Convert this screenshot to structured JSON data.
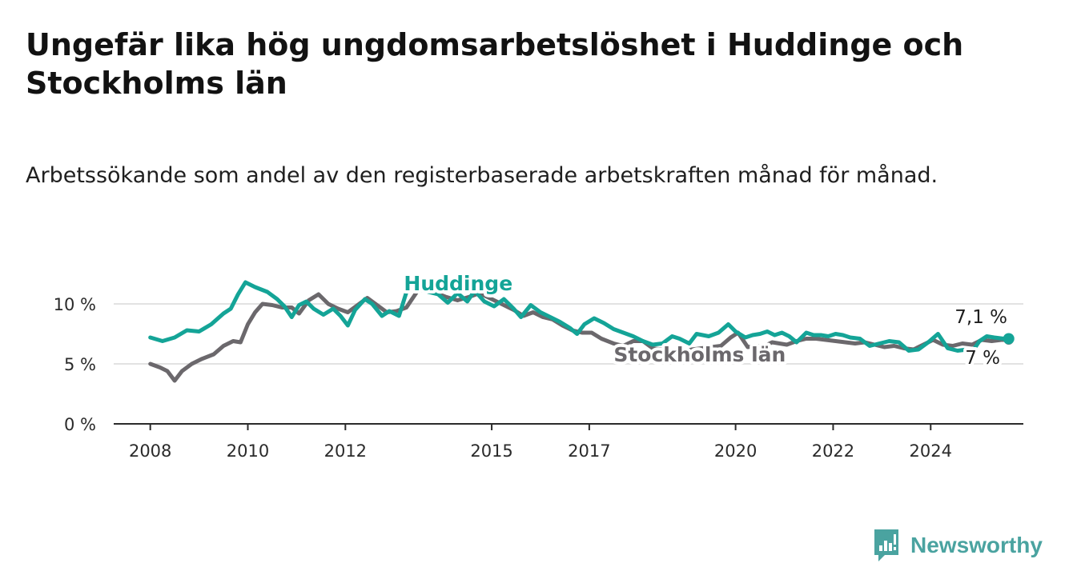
{
  "title": "Ungefär lika hög ungdomsarbetslöshet i Huddinge och Stockholms län",
  "subtitle": "Arbetssökande som andel av den registerbaserade arbetskraften månad för månad.",
  "brand": {
    "name": "Newsworthy",
    "icon": "newsworthy-logo-icon"
  },
  "colors": {
    "huddinge": "#14a497",
    "stockholm": "#6b686c",
    "axis": "#2b2b2b",
    "grid": "#d9d9d9",
    "text": "#2a2a2a"
  },
  "chart_data": {
    "type": "line",
    "title": "Ungefär lika hög ungdomsarbetslöshet i Huddinge och Stockholms län",
    "subtitle": "Arbetssökande som andel av den registerbaserade arbetskraften månad för månad.",
    "xlabel": "",
    "ylabel": "",
    "x_range": [
      2007.25,
      2025.9
    ],
    "ylim": [
      0,
      12
    ],
    "y_ticks": [
      0,
      5,
      10
    ],
    "y_tick_labels": [
      "0 %",
      "5 %",
      "10 %"
    ],
    "x_ticks": [
      2008,
      2010,
      2012,
      2015,
      2017,
      2020,
      2022,
      2024
    ],
    "x_tick_labels": [
      "2008",
      "2010",
      "2012",
      "2015",
      "2017",
      "2020",
      "2022",
      "2024"
    ],
    "grid": "horizontal",
    "legend": "direct labels on lines",
    "series": [
      {
        "name": "Huddinge",
        "end_label": "7,1 %",
        "points": [
          [
            2008.0,
            7.2
          ],
          [
            2008.25,
            6.9
          ],
          [
            2008.5,
            7.2
          ],
          [
            2008.75,
            7.8
          ],
          [
            2009.0,
            7.7
          ],
          [
            2009.25,
            8.3
          ],
          [
            2009.5,
            9.2
          ],
          [
            2009.65,
            9.6
          ],
          [
            2009.8,
            10.8
          ],
          [
            2009.95,
            11.8
          ],
          [
            2010.15,
            11.4
          ],
          [
            2010.4,
            11.0
          ],
          [
            2010.6,
            10.4
          ],
          [
            2010.75,
            9.8
          ],
          [
            2010.9,
            8.9
          ],
          [
            2011.05,
            9.9
          ],
          [
            2011.2,
            10.2
          ],
          [
            2011.35,
            9.6
          ],
          [
            2011.55,
            9.1
          ],
          [
            2011.75,
            9.6
          ],
          [
            2011.9,
            9.0
          ],
          [
            2012.05,
            8.2
          ],
          [
            2012.2,
            9.5
          ],
          [
            2012.4,
            10.4
          ],
          [
            2012.55,
            10.0
          ],
          [
            2012.75,
            9.0
          ],
          [
            2012.9,
            9.4
          ],
          [
            2013.1,
            9.0
          ],
          [
            2013.3,
            11.6
          ],
          [
            2013.6,
            11.1
          ],
          [
            2013.9,
            10.8
          ],
          [
            2014.1,
            10.1
          ],
          [
            2014.3,
            10.9
          ],
          [
            2014.5,
            10.2
          ],
          [
            2014.65,
            11.1
          ],
          [
            2014.85,
            10.2
          ],
          [
            2015.05,
            9.8
          ],
          [
            2015.25,
            10.4
          ],
          [
            2015.45,
            9.6
          ],
          [
            2015.6,
            8.9
          ],
          [
            2015.8,
            9.9
          ],
          [
            2016.0,
            9.3
          ],
          [
            2016.2,
            8.9
          ],
          [
            2016.4,
            8.5
          ],
          [
            2016.6,
            8.0
          ],
          [
            2016.75,
            7.5
          ],
          [
            2016.9,
            8.3
          ],
          [
            2017.1,
            8.8
          ],
          [
            2017.3,
            8.4
          ],
          [
            2017.5,
            7.9
          ],
          [
            2017.7,
            7.6
          ],
          [
            2017.9,
            7.3
          ],
          [
            2018.1,
            6.9
          ],
          [
            2018.3,
            6.6
          ],
          [
            2018.5,
            6.7
          ],
          [
            2018.7,
            7.3
          ],
          [
            2018.85,
            7.1
          ],
          [
            2019.05,
            6.7
          ],
          [
            2019.2,
            7.5
          ],
          [
            2019.45,
            7.3
          ],
          [
            2019.65,
            7.6
          ],
          [
            2019.85,
            8.3
          ],
          [
            2020.0,
            7.7
          ],
          [
            2020.2,
            7.2
          ],
          [
            2020.35,
            7.4
          ],
          [
            2020.5,
            7.5
          ],
          [
            2020.65,
            7.7
          ],
          [
            2020.8,
            7.4
          ],
          [
            2020.95,
            7.6
          ],
          [
            2021.1,
            7.3
          ],
          [
            2021.25,
            6.8
          ],
          [
            2021.45,
            7.6
          ],
          [
            2021.6,
            7.4
          ],
          [
            2021.75,
            7.4
          ],
          [
            2021.9,
            7.3
          ],
          [
            2022.05,
            7.5
          ],
          [
            2022.2,
            7.4
          ],
          [
            2022.35,
            7.2
          ],
          [
            2022.55,
            7.1
          ],
          [
            2022.75,
            6.5
          ],
          [
            2022.95,
            6.7
          ],
          [
            2023.15,
            6.9
          ],
          [
            2023.35,
            6.8
          ],
          [
            2023.55,
            6.1
          ],
          [
            2023.75,
            6.2
          ],
          [
            2023.95,
            6.8
          ],
          [
            2024.15,
            7.5
          ],
          [
            2024.35,
            6.3
          ],
          [
            2024.55,
            6.1
          ],
          [
            2024.75,
            6.2
          ],
          [
            2024.85,
            6.0
          ],
          [
            2025.0,
            6.9
          ],
          [
            2025.15,
            7.3
          ],
          [
            2025.3,
            7.2
          ],
          [
            2025.5,
            7.1
          ],
          [
            2025.6,
            7.1
          ]
        ]
      },
      {
        "name": "Stockholms län",
        "end_label": "7 %",
        "points": [
          [
            2008.0,
            5.0
          ],
          [
            2008.2,
            4.7
          ],
          [
            2008.35,
            4.4
          ],
          [
            2008.5,
            3.6
          ],
          [
            2008.65,
            4.4
          ],
          [
            2008.85,
            5.0
          ],
          [
            2009.05,
            5.4
          ],
          [
            2009.3,
            5.8
          ],
          [
            2009.5,
            6.5
          ],
          [
            2009.7,
            6.9
          ],
          [
            2009.85,
            6.8
          ],
          [
            2010.0,
            8.3
          ],
          [
            2010.15,
            9.3
          ],
          [
            2010.3,
            10.0
          ],
          [
            2010.5,
            9.9
          ],
          [
            2010.7,
            9.7
          ],
          [
            2010.9,
            9.7
          ],
          [
            2011.05,
            9.2
          ],
          [
            2011.25,
            10.3
          ],
          [
            2011.45,
            10.8
          ],
          [
            2011.65,
            10.0
          ],
          [
            2011.85,
            9.6
          ],
          [
            2012.05,
            9.3
          ],
          [
            2012.25,
            9.9
          ],
          [
            2012.45,
            10.5
          ],
          [
            2012.65,
            9.9
          ],
          [
            2012.85,
            9.3
          ],
          [
            2013.05,
            9.4
          ],
          [
            2013.25,
            9.7
          ],
          [
            2013.5,
            11.2
          ],
          [
            2013.8,
            11.0
          ],
          [
            2014.05,
            10.6
          ],
          [
            2014.3,
            10.3
          ],
          [
            2014.55,
            10.6
          ],
          [
            2014.75,
            10.9
          ],
          [
            2015.0,
            10.4
          ],
          [
            2015.25,
            9.9
          ],
          [
            2015.45,
            9.5
          ],
          [
            2015.65,
            9.0
          ],
          [
            2015.85,
            9.3
          ],
          [
            2016.05,
            8.9
          ],
          [
            2016.25,
            8.7
          ],
          [
            2016.45,
            8.2
          ],
          [
            2016.65,
            7.8
          ],
          [
            2016.85,
            7.6
          ],
          [
            2017.05,
            7.6
          ],
          [
            2017.25,
            7.1
          ],
          [
            2017.5,
            6.7
          ],
          [
            2017.7,
            6.5
          ],
          [
            2017.9,
            6.9
          ],
          [
            2018.1,
            6.9
          ],
          [
            2018.3,
            6.3
          ],
          [
            2018.5,
            6.2
          ],
          [
            2018.7,
            6.1
          ],
          [
            2018.9,
            6.0
          ],
          [
            2019.1,
            6.2
          ],
          [
            2019.3,
            6.3
          ],
          [
            2019.5,
            6.4
          ],
          [
            2019.7,
            6.5
          ],
          [
            2019.9,
            7.2
          ],
          [
            2020.05,
            7.6
          ],
          [
            2020.25,
            6.4
          ],
          [
            2020.45,
            6.5
          ],
          [
            2020.6,
            6.5
          ],
          [
            2020.75,
            6.8
          ],
          [
            2020.9,
            6.7
          ],
          [
            2021.05,
            6.6
          ],
          [
            2021.25,
            6.9
          ],
          [
            2021.45,
            7.1
          ],
          [
            2021.65,
            7.1
          ],
          [
            2021.85,
            7.0
          ],
          [
            2022.05,
            6.9
          ],
          [
            2022.25,
            6.8
          ],
          [
            2022.45,
            6.7
          ],
          [
            2022.65,
            6.8
          ],
          [
            2022.85,
            6.6
          ],
          [
            2023.05,
            6.4
          ],
          [
            2023.25,
            6.5
          ],
          [
            2023.45,
            6.3
          ],
          [
            2023.65,
            6.2
          ],
          [
            2023.85,
            6.6
          ],
          [
            2024.05,
            7.0
          ],
          [
            2024.25,
            6.6
          ],
          [
            2024.45,
            6.5
          ],
          [
            2024.65,
            6.7
          ],
          [
            2024.85,
            6.6
          ],
          [
            2025.05,
            7.0
          ],
          [
            2025.25,
            6.9
          ],
          [
            2025.45,
            7.0
          ],
          [
            2025.6,
            7.0
          ]
        ]
      }
    ]
  }
}
